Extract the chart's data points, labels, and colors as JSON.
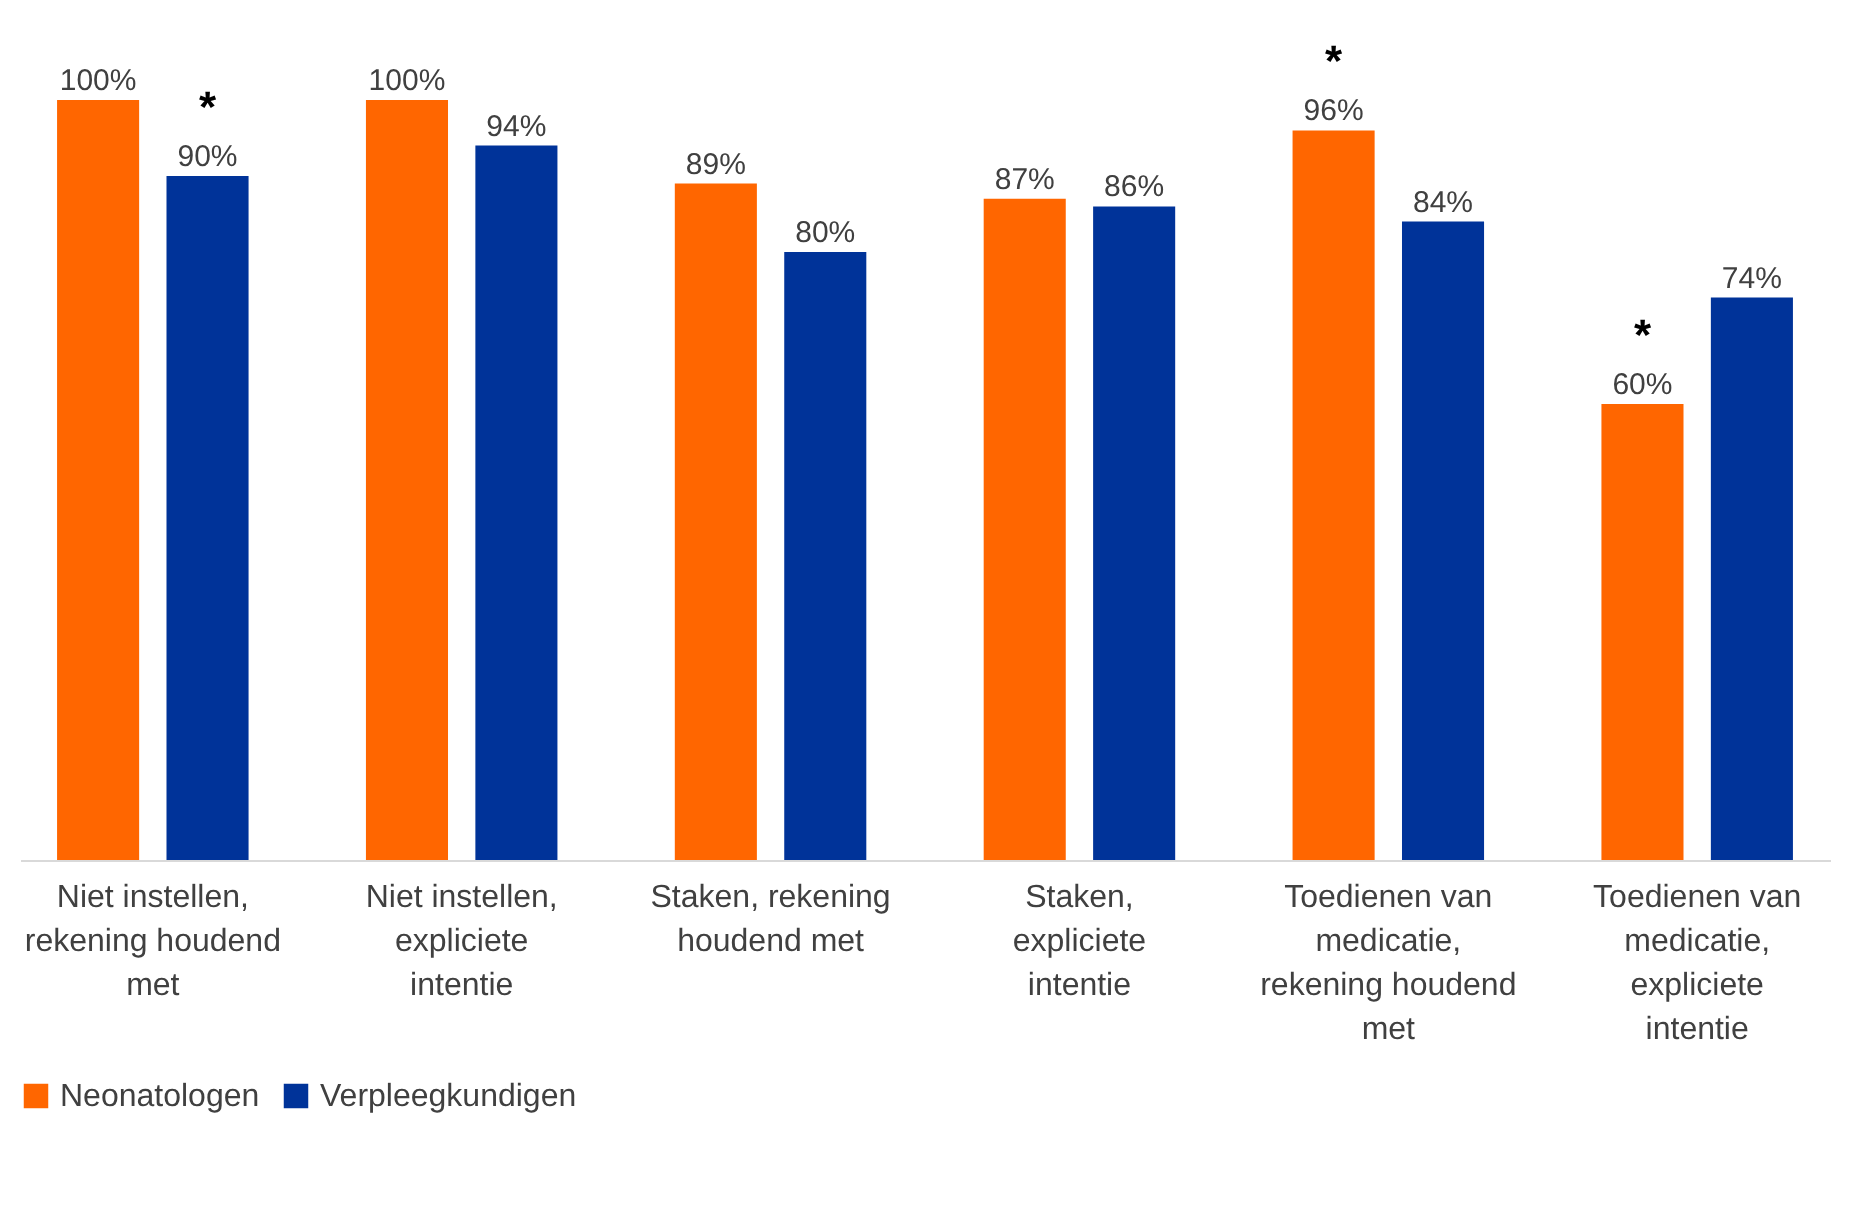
{
  "chart_data": {
    "type": "bar",
    "categories": [
      "Niet instellen, rekening houdend met",
      "Niet instellen, expliciete intentie",
      "Staken, rekening houdend met",
      "Staken, expliciete intentie",
      "Toedienen van medicatie, rekening houdend met",
      "Toedienen van medicatie, expliciete intentie"
    ],
    "series": [
      {
        "name": "Neonatologen",
        "color": "#ff6600",
        "values": [
          100,
          100,
          89,
          87,
          96,
          60
        ],
        "value_labels": [
          "100%",
          "100%",
          "89%",
          "87%",
          "96%",
          "60%"
        ]
      },
      {
        "name": "Verpleegkundigen",
        "color": "#003399",
        "values": [
          90,
          94,
          80,
          86,
          84,
          74
        ],
        "value_labels": [
          "90%",
          "94%",
          "80%",
          "86%",
          "84%",
          "74%"
        ]
      }
    ],
    "annotations": [
      "*",
      "*",
      "*"
    ],
    "legend": "bottom",
    "grid": false
  }
}
